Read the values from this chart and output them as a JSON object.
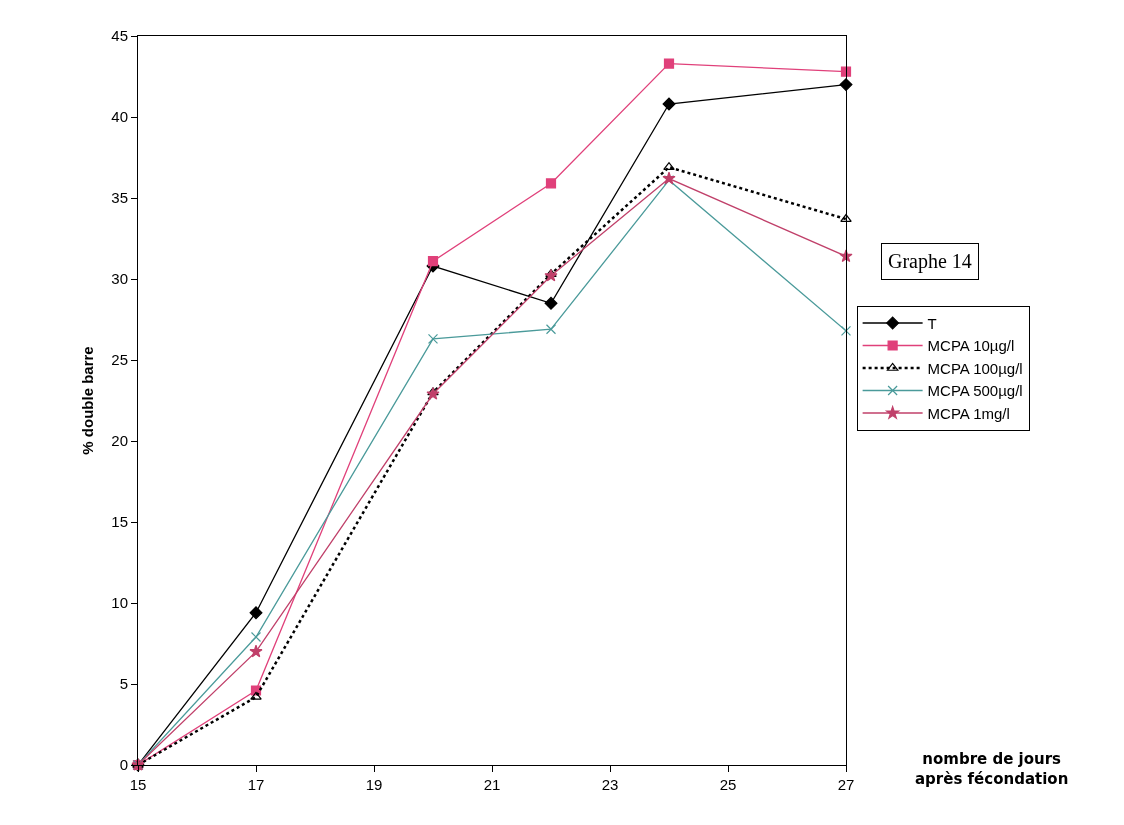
{
  "chart_data": {
    "type": "line",
    "xlabel": "nombre de jours\naprès fécondation",
    "ylabel": "% double barre",
    "x": [
      15,
      17,
      20,
      22,
      24,
      27
    ],
    "series": [
      {
        "name": "T",
        "color": "#000000",
        "marker": "diamond",
        "line_style": "solid",
        "values": [
          0,
          9.4,
          30.8,
          28.5,
          40.8,
          42.0
        ]
      },
      {
        "name": "MCPA 10µg/l",
        "color": "#e0407a",
        "marker": "square",
        "line_style": "solid",
        "values": [
          0,
          4.6,
          31.1,
          35.9,
          43.3,
          42.8
        ]
      },
      {
        "name": "MCPA 100µg/l",
        "color": "#000000",
        "marker": "triangle",
        "line_style": "dotted",
        "values": [
          0,
          4.2,
          23.0,
          30.3,
          36.9,
          33.7
        ]
      },
      {
        "name": "MCPA 500µg/l",
        "color": "#4a9a9a",
        "marker": "cross",
        "line_style": "solid",
        "values": [
          0,
          7.9,
          26.3,
          26.9,
          36.1,
          26.8
        ]
      },
      {
        "name": "MCPA 1mg/l",
        "color": "#c0406a",
        "marker": "star",
        "line_style": "solid",
        "values": [
          0,
          7.0,
          22.9,
          30.2,
          36.2,
          31.4
        ]
      }
    ],
    "xlim": [
      15,
      27
    ],
    "xticks": [
      15,
      17,
      19,
      21,
      23,
      25,
      27
    ],
    "ylim": [
      0,
      45
    ],
    "yticks": [
      0,
      5,
      10,
      15,
      20,
      25,
      30,
      35,
      40,
      45
    ],
    "grid": false,
    "legend": "right",
    "annotations": [
      "Graphe 14"
    ]
  }
}
